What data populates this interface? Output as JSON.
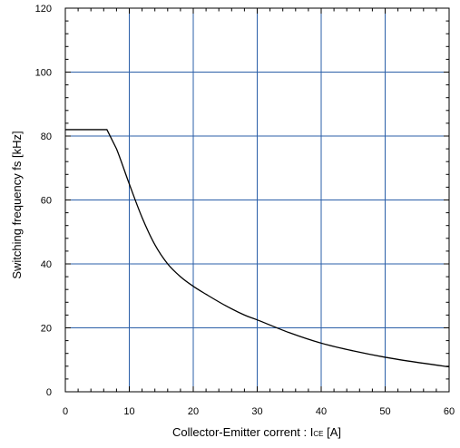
{
  "chart_data": {
    "type": "line",
    "xlabel_prefix": "Collector-Emitter corrent : I",
    "xlabel_sub": "CE",
    "xlabel_suffix": " [A]",
    "ylabel": "Switching frequency fs [kHz]",
    "xlim": [
      0,
      60
    ],
    "ylim": [
      0,
      120
    ],
    "xticks": [
      0,
      10,
      20,
      30,
      40,
      50,
      60
    ],
    "yticks": [
      0,
      20,
      40,
      60,
      80,
      100,
      120
    ],
    "grid": true,
    "colors": {
      "grid": "#2b5fa8",
      "line": "#000000",
      "axes": "#000000"
    },
    "series": [
      {
        "x": [
          0,
          6.5,
          8,
          10,
          12,
          14,
          16,
          18,
          20,
          22,
          25,
          28,
          30,
          35,
          40,
          45,
          50,
          55,
          60
        ],
        "y": [
          82,
          82,
          76,
          65,
          54.5,
          46,
          40,
          36,
          33,
          30.5,
          27,
          24,
          22.5,
          18.5,
          15.2,
          12.8,
          10.8,
          9.2,
          7.8
        ]
      }
    ]
  }
}
